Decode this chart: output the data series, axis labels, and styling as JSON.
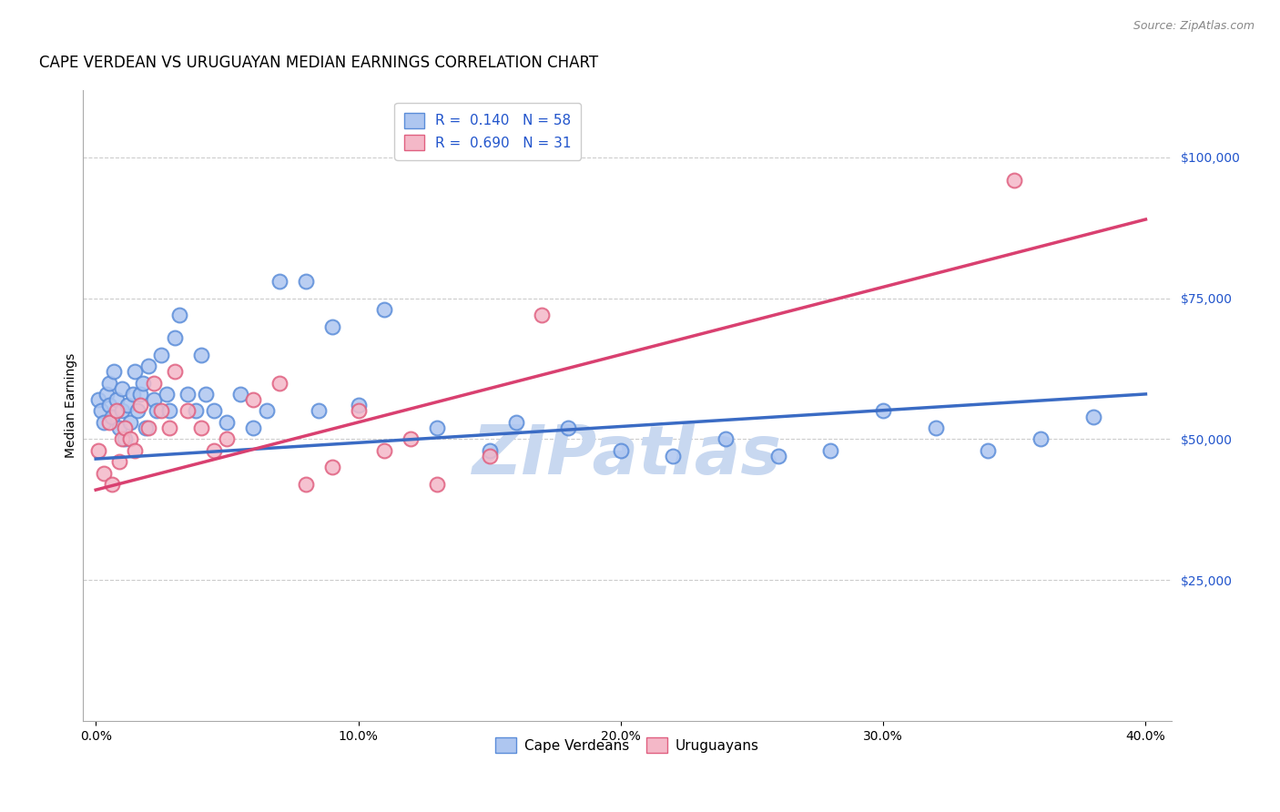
{
  "title": "CAPE VERDEAN VS URUGUAYAN MEDIAN EARNINGS CORRELATION CHART",
  "source": "Source: ZipAtlas.com",
  "ylabel": "Median Earnings",
  "xlabel_ticks": [
    "0.0%",
    "10.0%",
    "20.0%",
    "30.0%",
    "40.0%"
  ],
  "xlabel_vals": [
    0.0,
    0.1,
    0.2,
    0.3,
    0.4
  ],
  "ytick_labels": [
    "$25,000",
    "$50,000",
    "$75,000",
    "$100,000"
  ],
  "ytick_vals": [
    25000,
    50000,
    75000,
    100000
  ],
  "ylim": [
    0,
    112000
  ],
  "xlim": [
    -0.005,
    0.41
  ],
  "legend_entries": [
    {
      "label_r": "R = ",
      "label_rv": "0.140",
      "label_n": "   N = ",
      "label_nv": "58"
    },
    {
      "label_r": "R = ",
      "label_rv": "0.690",
      "label_n": "   N = ",
      "label_nv": "31"
    }
  ],
  "legend_labels_bottom": [
    "Cape Verdeans",
    "Uruguayans"
  ],
  "cape_verdean_color": "#aec6f0",
  "cape_verdean_edge": "#5b8dd9",
  "uruguayan_color": "#f4b8c8",
  "uruguayan_edge": "#e06080",
  "blue_line_color": "#3a6bc4",
  "pink_line_color": "#d94070",
  "watermark": "ZIPatlas",
  "watermark_color": "#c8d8f0",
  "grid_color": "#cccccc",
  "grid_linestyle": "--",
  "cape_verdeans_x": [
    0.001,
    0.002,
    0.003,
    0.004,
    0.005,
    0.005,
    0.006,
    0.007,
    0.008,
    0.009,
    0.01,
    0.01,
    0.011,
    0.012,
    0.013,
    0.014,
    0.015,
    0.016,
    0.017,
    0.018,
    0.019,
    0.02,
    0.022,
    0.023,
    0.025,
    0.027,
    0.028,
    0.03,
    0.032,
    0.035,
    0.038,
    0.04,
    0.042,
    0.045,
    0.05,
    0.055,
    0.06,
    0.065,
    0.07,
    0.08,
    0.085,
    0.09,
    0.1,
    0.11,
    0.13,
    0.15,
    0.16,
    0.18,
    0.2,
    0.22,
    0.24,
    0.26,
    0.28,
    0.3,
    0.32,
    0.34,
    0.36,
    0.38
  ],
  "cape_verdeans_y": [
    57000,
    55000,
    53000,
    58000,
    56000,
    60000,
    54000,
    62000,
    57000,
    52000,
    55000,
    59000,
    50000,
    56000,
    53000,
    58000,
    62000,
    55000,
    58000,
    60000,
    52000,
    63000,
    57000,
    55000,
    65000,
    58000,
    55000,
    68000,
    72000,
    58000,
    55000,
    65000,
    58000,
    55000,
    53000,
    58000,
    52000,
    55000,
    78000,
    78000,
    55000,
    70000,
    56000,
    73000,
    52000,
    48000,
    53000,
    52000,
    48000,
    47000,
    50000,
    47000,
    48000,
    55000,
    52000,
    48000,
    50000,
    54000
  ],
  "uruguayans_x": [
    0.001,
    0.003,
    0.005,
    0.006,
    0.008,
    0.009,
    0.01,
    0.011,
    0.013,
    0.015,
    0.017,
    0.02,
    0.022,
    0.025,
    0.028,
    0.03,
    0.035,
    0.04,
    0.045,
    0.05,
    0.06,
    0.07,
    0.08,
    0.09,
    0.1,
    0.11,
    0.12,
    0.13,
    0.15,
    0.17,
    0.35
  ],
  "uruguayans_y": [
    48000,
    44000,
    53000,
    42000,
    55000,
    46000,
    50000,
    52000,
    50000,
    48000,
    56000,
    52000,
    60000,
    55000,
    52000,
    62000,
    55000,
    52000,
    48000,
    50000,
    57000,
    60000,
    42000,
    45000,
    55000,
    48000,
    50000,
    42000,
    47000,
    72000,
    96000
  ],
  "blue_line_x": [
    0.0,
    0.4
  ],
  "blue_line_y": [
    46500,
    58000
  ],
  "pink_line_x": [
    0.0,
    0.4
  ],
  "pink_line_y": [
    41000,
    89000
  ],
  "marker_size": 130,
  "title_fontsize": 12,
  "axis_label_fontsize": 10,
  "tick_fontsize": 10,
  "legend_fontsize": 11,
  "source_fontsize": 9,
  "text_color_blue": "#2255cc",
  "text_color_black": "#333333"
}
